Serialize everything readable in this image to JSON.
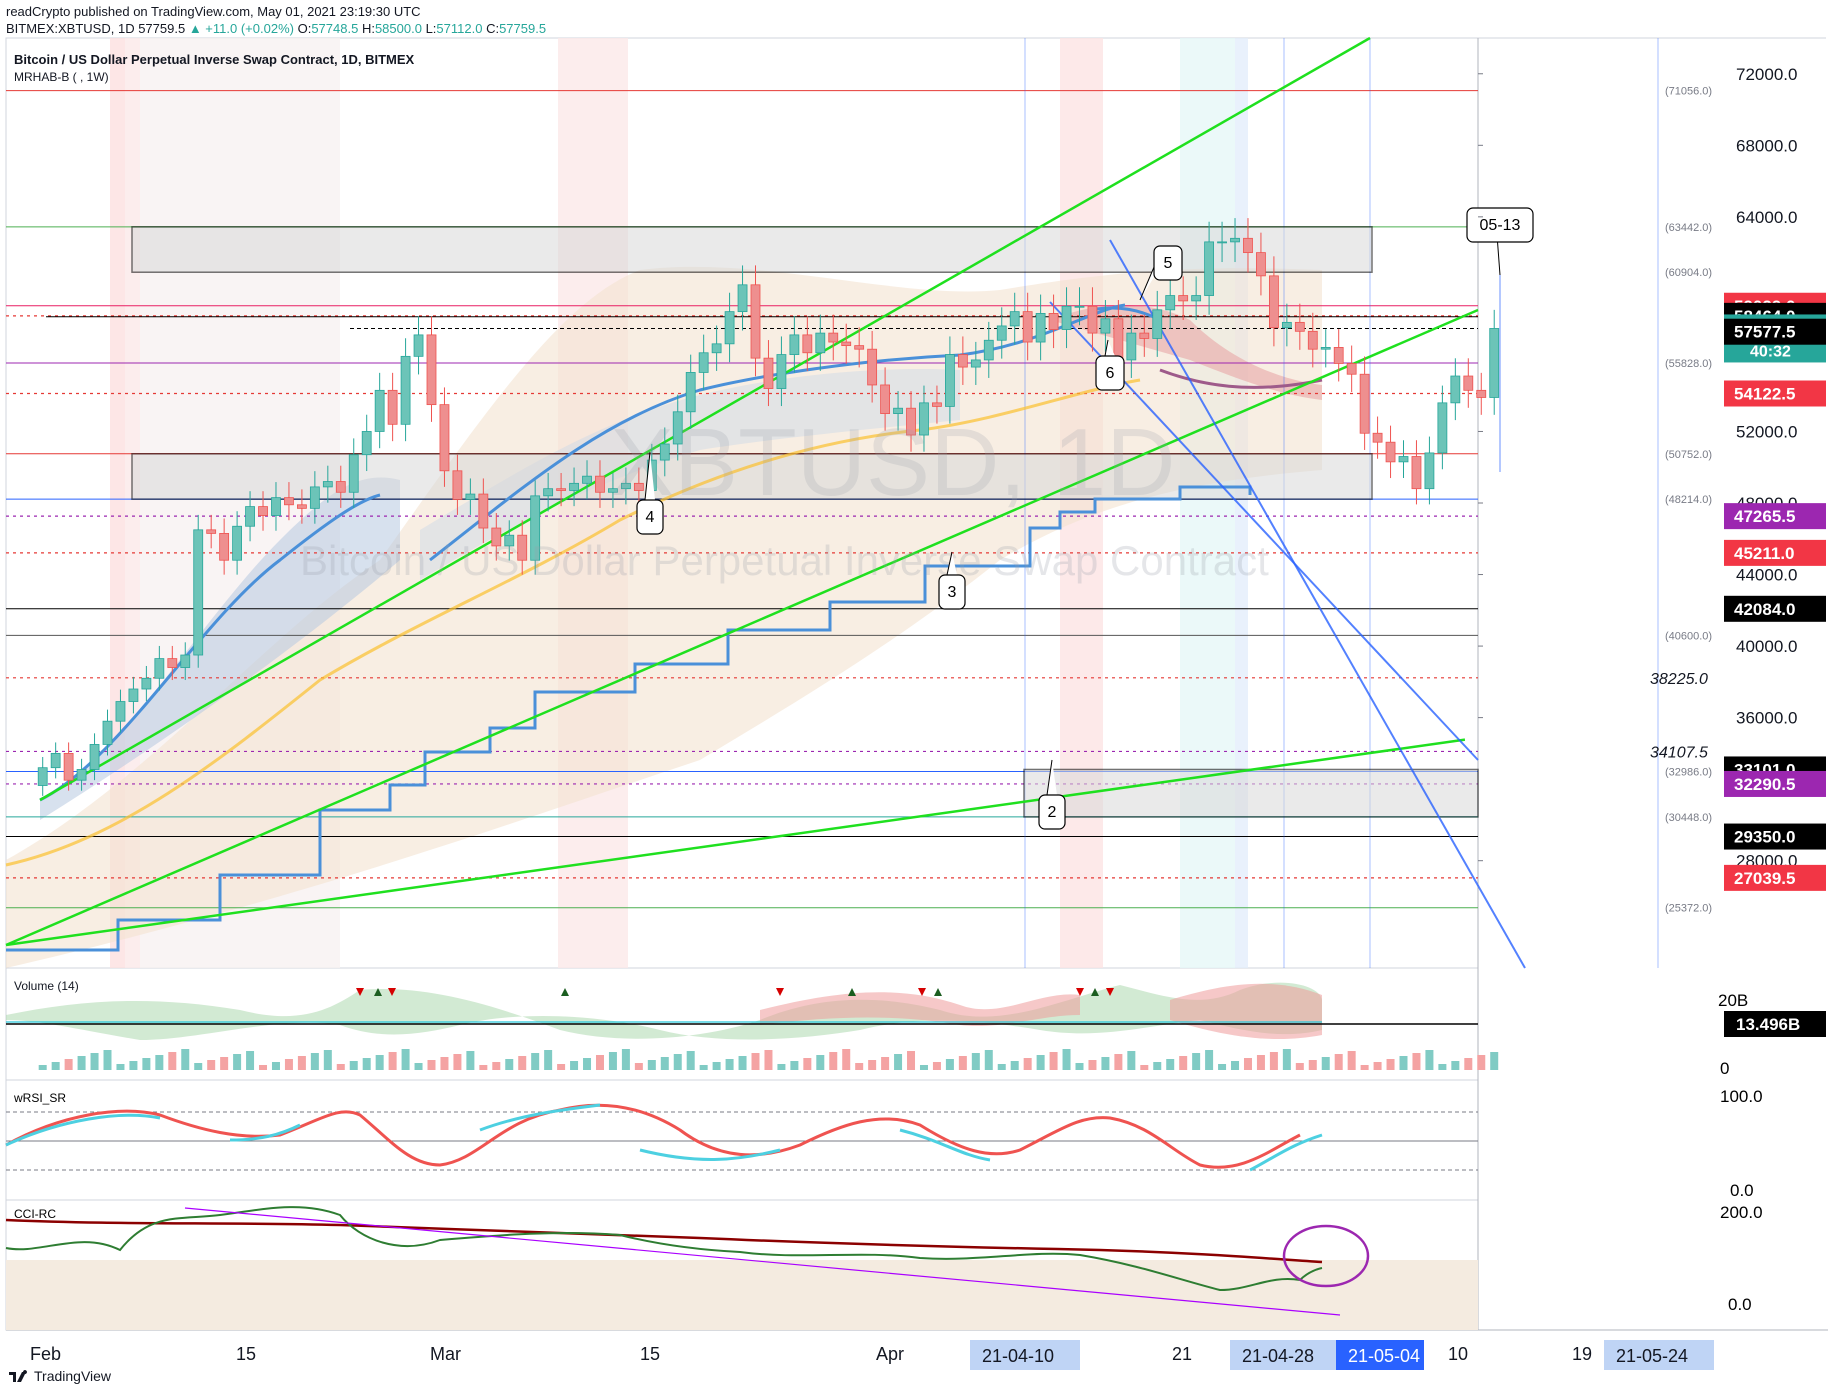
{
  "header": {
    "line1": "readCrypto published on TradingView.com, May 01, 2021 23:19:30 UTC",
    "symbol": "BITMEX:XBTUSD, 1D",
    "last": "57759.5",
    "change": "▲ +11.0 (+0.02%)",
    "o_label": "O:",
    "o": "57748.5",
    "h_label": "H:",
    "h": "58500.0",
    "l_label": "L:",
    "l": "57112.0",
    "c_label": "C:",
    "c": "57759.5"
  },
  "main": {
    "title": "Bitcoin / US Dollar Perpetual Inverse Swap Contract, 1D, BITMEX",
    "indicator": "MRHAB-B ( , 1W)",
    "watermark_symbol": "XBTUSD, 1D",
    "watermark_name": "Bitcoin / US Dollar Perpetual Inverse Swap Contract"
  },
  "chart_data": {
    "type": "candlestick",
    "ylim": [
      22000,
      74000
    ],
    "price_axis_ticks": [
      "72000.0",
      "68000.0",
      "64000.0",
      "52000.0",
      "48000.0",
      "44000.0",
      "40000.0",
      "36000.0",
      "28000.0"
    ],
    "x_axis_ticks": [
      "Feb",
      "15",
      "Mar",
      "15",
      "Apr",
      "21",
      "10",
      "19"
    ],
    "x_axis_highlights": [
      "21-04-10",
      "21-04-28",
      "21-05-04",
      "21-05-24"
    ],
    "price_labels": [
      {
        "text": "59029.0",
        "value": 59029.0,
        "color": "#f23645"
      },
      {
        "text": "58464.0",
        "value": 58464.0,
        "color": "#000000"
      },
      {
        "text": "57759.5",
        "value": 57759.5,
        "color": "#26a69a",
        "sub": "40:32"
      },
      {
        "text": "57577.5",
        "value": 57577.5,
        "color": "#000000"
      },
      {
        "text": "54122.5",
        "value": 54122.5,
        "color": "#f23645"
      },
      {
        "text": "47265.5",
        "value": 47265.5,
        "color": "#9c27b0"
      },
      {
        "text": "45211.0",
        "value": 45211.0,
        "color": "#f23645"
      },
      {
        "text": "42084.0",
        "value": 42084.0,
        "color": "#000000"
      },
      {
        "text": "33101.0",
        "value": 33101.0,
        "color": "#000000"
      },
      {
        "text": "32290.5",
        "value": 32290.5,
        "color": "#9c27b0"
      },
      {
        "text": "29350.0",
        "value": 29350.0,
        "color": "#000000"
      },
      {
        "text": "27039.5",
        "value": 27039.5,
        "color": "#f23645"
      }
    ],
    "level_labels": [
      {
        "text": "(71056.0)",
        "value": 71056
      },
      {
        "text": "(63442.0)",
        "value": 63442
      },
      {
        "text": "(60904.0)",
        "value": 60904
      },
      {
        "text": "(55828.0)",
        "value": 55828
      },
      {
        "text": "(50752.0)",
        "value": 50752
      },
      {
        "text": "(48214.0)",
        "value": 48214
      },
      {
        "text": "(40600.0)",
        "value": 40600
      },
      {
        "text": "(32986.0)",
        "value": 32986
      },
      {
        "text": "(30448.0)",
        "value": 30448
      },
      {
        "text": "(25372.0)",
        "value": 25372
      }
    ],
    "dotted_levels": [
      {
        "text": "38225.0",
        "value": 38225
      },
      {
        "text": "34107.5",
        "value": 34107.5
      }
    ],
    "callouts": [
      "2",
      "3",
      "4",
      "5",
      "6",
      "05-13"
    ],
    "closes": [
      33200,
      34000,
      32500,
      33100,
      34500,
      35800,
      36900,
      37600,
      38200,
      39300,
      38800,
      39500,
      46500,
      46300,
      44800,
      46700,
      47800,
      47300,
      48300,
      47900,
      47700,
      48900,
      49200,
      48600,
      50700,
      52000,
      54300,
      52400,
      56200,
      57400,
      53500,
      49800,
      48200,
      48500,
      46600,
      45600,
      46200,
      44800,
      48400,
      48800,
      48700,
      49100,
      49500,
      48600,
      48800,
      49100,
      48700,
      50400,
      51300,
      53100,
      55300,
      56400,
      56900,
      58700,
      60200,
      56100,
      54400,
      56300,
      57400,
      56400,
      57500,
      57000,
      56800,
      56600,
      54600,
      53000,
      53300,
      51800,
      53600,
      53400,
      56300,
      55600,
      56000,
      57100,
      57900,
      58700,
      57000,
      58600,
      57700,
      59000,
      59000,
      57500,
      58300,
      56000,
      57500,
      57200,
      58800,
      59600,
      59300,
      59600,
      62600,
      62600,
      62800,
      62000,
      60700,
      57800,
      58100,
      57600,
      56600,
      56700,
      55800,
      55200,
      51900,
      51400,
      50300,
      50600,
      48800,
      50800,
      53600,
      55100,
      54300,
      53900,
      57759.5
    ],
    "volume": {
      "label": "Volume (14)",
      "axis": [
        "20B",
        "0"
      ],
      "last_label": "13.496B"
    },
    "rsi": {
      "label": "wRSI_SR",
      "axis": [
        "100.0",
        "0.0"
      ]
    },
    "cci": {
      "label": "CCI-RC",
      "axis": [
        "200.0",
        "0.0"
      ]
    }
  },
  "footer": {
    "brand": "TradingView"
  }
}
